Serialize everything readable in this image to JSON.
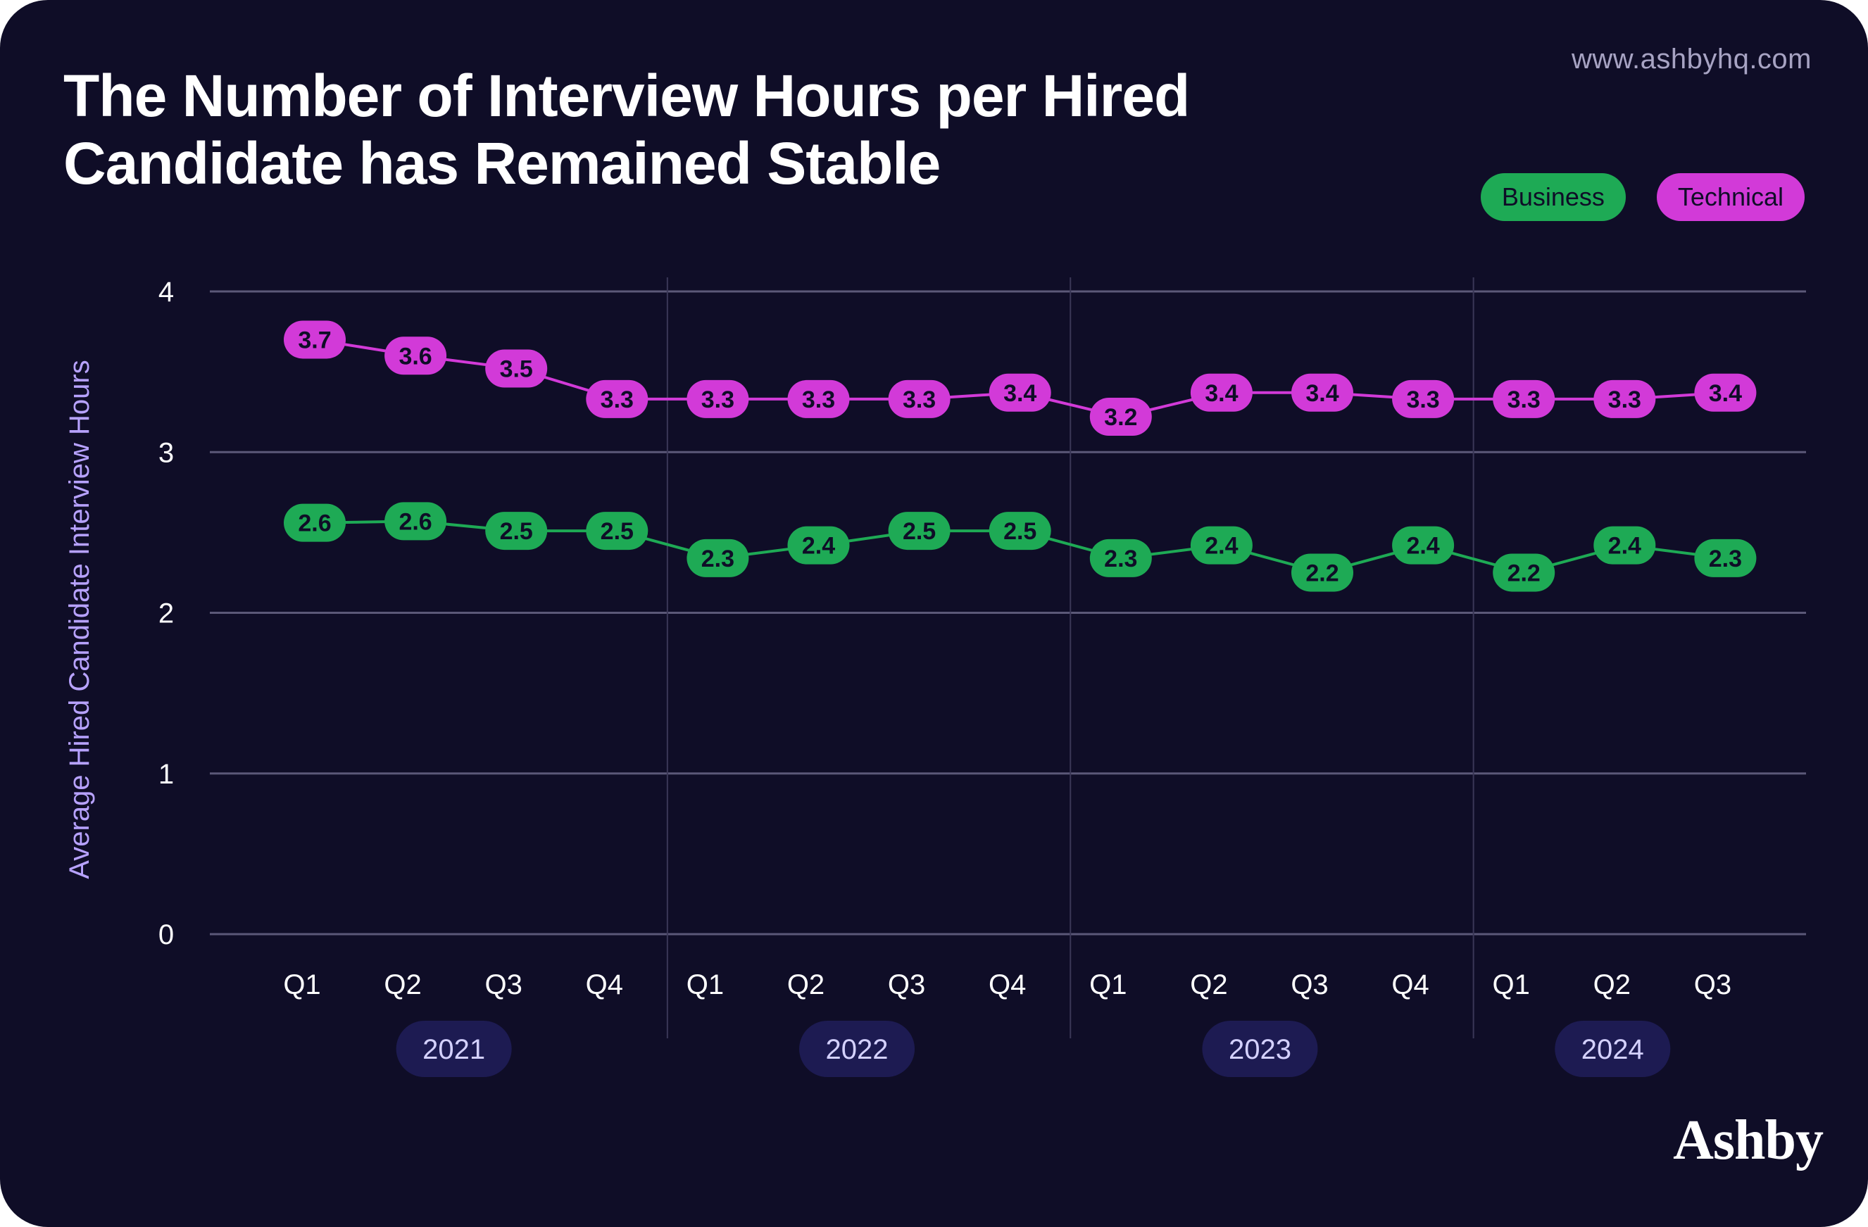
{
  "header": {
    "title": "The Number of Interview Hours per Hired Candidate has Remained Stable",
    "website": "www.ashbyhq.com",
    "brand": "Ashby"
  },
  "colors": {
    "background": "#0f0d27",
    "business": "#1eaa55",
    "technical": "#d23ad8",
    "year_pill": "#1d1b52",
    "ylabel": "#b7a2ff"
  },
  "chart_data": {
    "type": "line",
    "title": "The Number of Interview Hours per Hired Candidate has Remained Stable",
    "xlabel": "",
    "ylabel": "Average Hired Candidate Interview Hours",
    "ylim": [
      0,
      4
    ],
    "yticks": [
      0,
      1,
      2,
      3,
      4
    ],
    "grid": true,
    "legend_position": "top-right",
    "categories": [
      "Q1",
      "Q2",
      "Q3",
      "Q4",
      "Q1",
      "Q2",
      "Q3",
      "Q4",
      "Q1",
      "Q2",
      "Q3",
      "Q4",
      "Q1",
      "Q2",
      "Q3"
    ],
    "year_groups": [
      {
        "label": "2021",
        "quarters": 4
      },
      {
        "label": "2022",
        "quarters": 4
      },
      {
        "label": "2023",
        "quarters": 4
      },
      {
        "label": "2024",
        "quarters": 3
      }
    ],
    "series": [
      {
        "name": "Business",
        "color": "#1eaa55",
        "values": [
          2.56,
          2.57,
          2.51,
          2.51,
          2.34,
          2.42,
          2.51,
          2.51,
          2.34,
          2.42,
          2.25,
          2.42,
          2.25,
          2.42,
          2.34
        ],
        "labels": [
          "2.6",
          "2.6",
          "2.5",
          "2.5",
          "2.3",
          "2.4",
          "2.5",
          "2.5",
          "2.3",
          "2.4",
          "2.2",
          "2.4",
          "2.2",
          "2.4",
          "2.3"
        ]
      },
      {
        "name": "Technical",
        "color": "#d23ad8",
        "values": [
          3.7,
          3.6,
          3.52,
          3.33,
          3.33,
          3.33,
          3.33,
          3.37,
          3.22,
          3.37,
          3.37,
          3.33,
          3.33,
          3.33,
          3.37
        ],
        "labels": [
          "3.7",
          "3.6",
          "3.5",
          "3.3",
          "3.3",
          "3.3",
          "3.3",
          "3.4",
          "3.2",
          "3.4",
          "3.4",
          "3.3",
          "3.3",
          "3.3",
          "3.4"
        ]
      }
    ]
  }
}
